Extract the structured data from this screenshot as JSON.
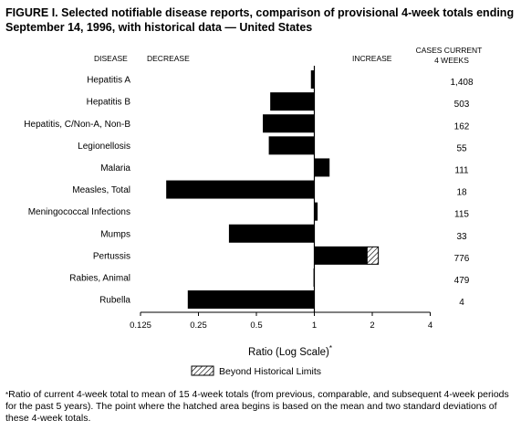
{
  "title": "FIGURE I. Selected notifiable disease reports, comparison of provisional 4-week totals ending September 14, 1996, with historical data — United States",
  "headers": {
    "disease": "DISEASE",
    "decrease": "DECREASE",
    "increase": "INCREASE",
    "cases_line1": "CASES CURRENT",
    "cases_line2": "4 WEEKS"
  },
  "chart_data": {
    "type": "bar",
    "orientation": "horizontal",
    "scale": "log2",
    "xlim": [
      0.125,
      4
    ],
    "xticks": [
      "0.125",
      "0.25",
      "0.5",
      "1",
      "2",
      "4"
    ],
    "xtick_values": [
      0.125,
      0.25,
      0.5,
      1,
      2,
      4
    ],
    "baseline": 1,
    "xlabel": "Ratio (Log Scale)",
    "xlabel_mark": "*",
    "categories": [
      "Hepatitis A",
      "Hepatitis B",
      "Hepatitis, C/Non-A, Non-B",
      "Legionellosis",
      "Malaria",
      "Measles, Total",
      "Meningococcal Infections",
      "Mumps",
      "Pertussis",
      "Rabies, Animal",
      "Rubella"
    ],
    "values": [
      0.96,
      0.59,
      0.54,
      0.58,
      1.2,
      0.17,
      1.04,
      0.36,
      2.15,
      0.99,
      0.22
    ],
    "historical_limit": [
      null,
      null,
      null,
      null,
      null,
      null,
      null,
      null,
      1.88,
      null,
      null
    ],
    "cases": [
      "1,408",
      "503",
      "162",
      "55",
      "111",
      "18",
      "115",
      "33",
      "776",
      "479",
      "4"
    ],
    "legend": {
      "label": "Beyond Historical Limits",
      "position": "bottom-center"
    }
  },
  "footnote": {
    "mark": "*",
    "text": "Ratio of current 4-week total to mean of 15 4-week totals (from previous, comparable, and subsequent 4-week periods for the past 5 years). The point where the hatched area begins is based on the mean and two standard deviations of these 4-week totals."
  }
}
